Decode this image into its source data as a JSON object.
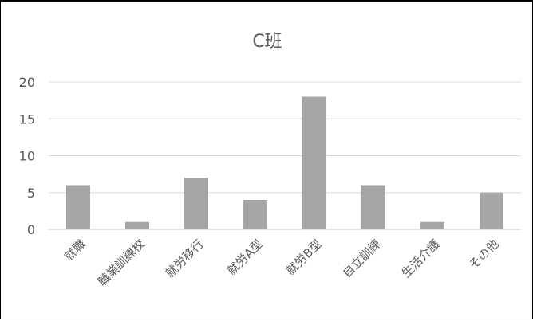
{
  "chart_data": {
    "type": "bar",
    "title": "C班",
    "xlabel": "",
    "ylabel": "",
    "categories": [
      "就職",
      "職業訓練校",
      "就労移行",
      "就労A型",
      "就労B型",
      "自立訓練",
      "生活介護",
      "その他"
    ],
    "values": [
      6,
      1,
      7,
      4,
      18,
      6,
      1,
      5
    ],
    "ylim": [
      0,
      20
    ],
    "yticks": [
      0,
      5,
      10,
      15,
      20
    ],
    "grid": true,
    "legend": "none",
    "colors": {
      "bar": "#a5a5a5",
      "grid": "#d9d9d9",
      "text": "#595959"
    }
  }
}
